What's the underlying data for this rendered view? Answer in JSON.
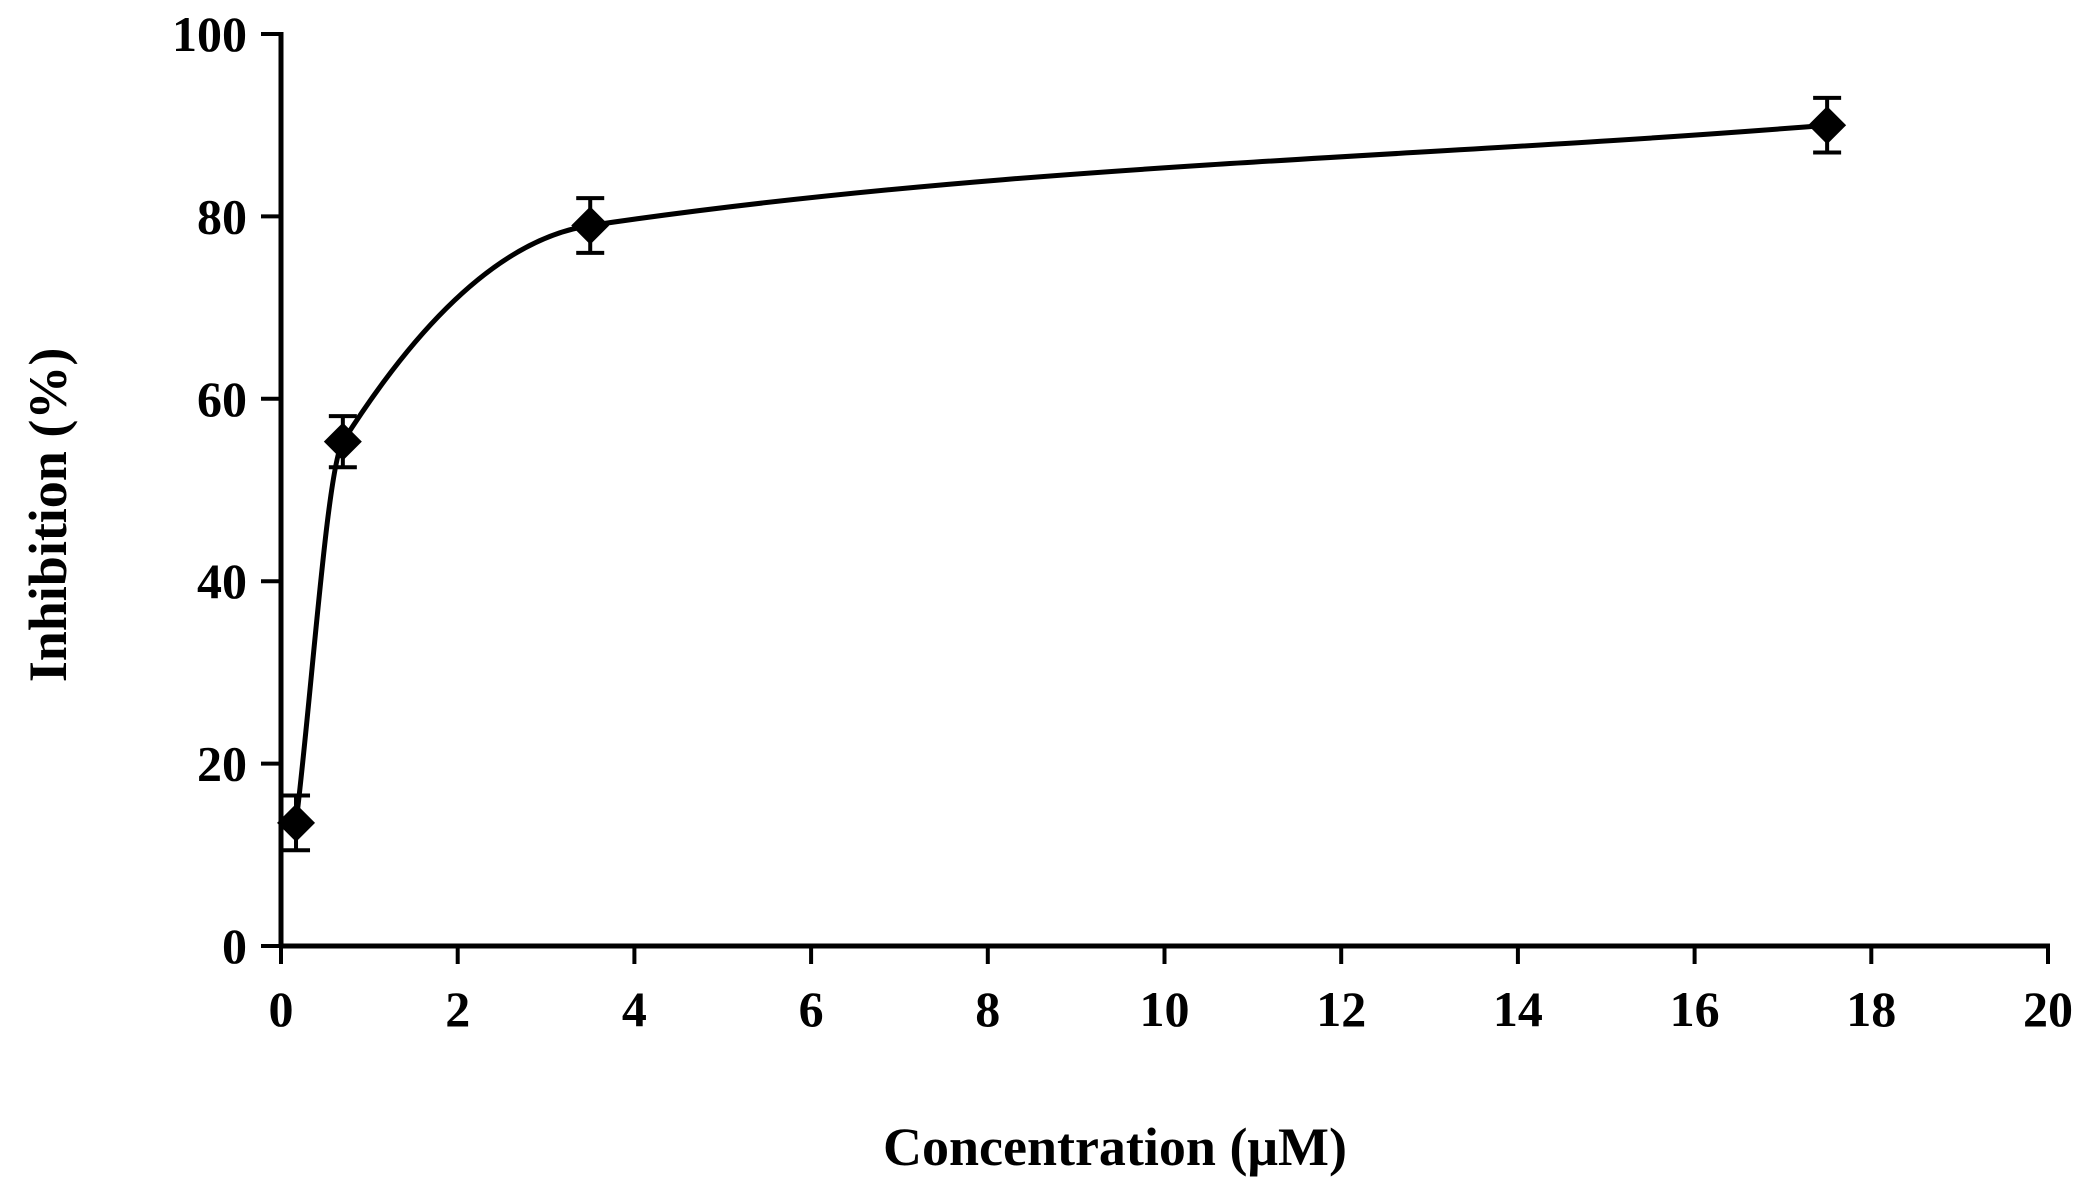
{
  "chart_data": {
    "type": "scatter",
    "title": "",
    "xlabel": "Concentration (μM)",
    "ylabel": "Inhibition (%)",
    "xlim": [
      0,
      20
    ],
    "ylim": [
      0,
      100
    ],
    "x_ticks": [
      0,
      2,
      4,
      6,
      8,
      10,
      12,
      14,
      16,
      18,
      20
    ],
    "y_ticks": [
      0,
      20,
      40,
      60,
      80,
      100
    ],
    "grid": false,
    "legend": "none",
    "marker": "diamond",
    "trendline": "smooth curve through points",
    "series": [
      {
        "name": "Inhibition",
        "x": [
          0.17,
          0.7,
          3.5,
          17.5
        ],
        "y": [
          13.5,
          55.3,
          79.0,
          90.0
        ],
        "error": [
          3.0,
          2.8,
          3.0,
          3.0
        ]
      }
    ],
    "colors": {
      "line": "#000000",
      "marker": "#000000",
      "axis": "#000000",
      "axis_title": "#000000"
    }
  }
}
